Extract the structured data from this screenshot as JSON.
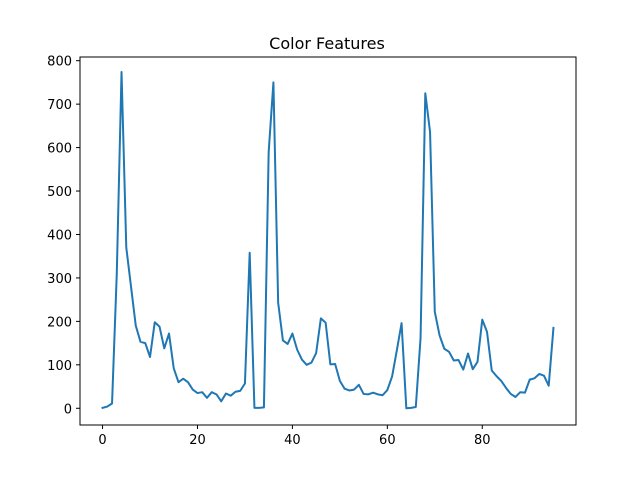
{
  "chart_data": {
    "type": "line",
    "title": "Color Features",
    "xlabel": "",
    "ylabel": "",
    "xlim": [
      -4.75,
      99.75
    ],
    "ylim": [
      -38.5,
      808.5
    ],
    "x_ticks": [
      0,
      20,
      40,
      60,
      80
    ],
    "y_ticks": [
      0,
      100,
      200,
      300,
      400,
      500,
      600,
      700,
      800
    ],
    "grid": false,
    "legend": "none",
    "line_color": "#1f77b4",
    "series": [
      {
        "x": [
          0,
          1,
          2,
          3,
          4,
          5,
          6,
          7,
          8,
          9,
          10,
          11,
          12,
          13,
          14,
          15,
          16,
          17,
          18,
          19,
          20,
          21,
          22,
          23,
          24,
          25,
          26,
          27,
          28,
          29,
          30,
          31,
          32,
          33,
          34,
          35,
          36,
          37,
          38,
          39,
          40,
          41,
          42,
          43,
          44,
          45,
          46,
          47,
          48,
          49,
          50,
          51,
          52,
          53,
          54,
          55,
          56,
          57,
          58,
          59,
          60,
          61,
          62,
          63,
          64,
          65,
          66,
          67,
          68,
          69,
          70,
          71,
          72,
          73,
          74,
          75,
          76,
          77,
          78,
          79,
          80,
          81,
          82,
          83,
          84,
          85,
          86,
          87,
          88,
          89,
          90,
          91,
          92,
          93,
          94,
          95
        ],
        "values": [
          1,
          4,
          11,
          310,
          774,
          370,
          280,
          190,
          153,
          150,
          118,
          198,
          188,
          138,
          172,
          92,
          60,
          68,
          60,
          43,
          35,
          37,
          24,
          37,
          32,
          16,
          34,
          29,
          38,
          40,
          57,
          358,
          1,
          1,
          2,
          590,
          750,
          243,
          156,
          148,
          172,
          135,
          112,
          100,
          105,
          127,
          207,
          197,
          101,
          102,
          63,
          45,
          41,
          43,
          54,
          33,
          32,
          36,
          32,
          30,
          42,
          73,
          133,
          196,
          0,
          1,
          3,
          162,
          725,
          636,
          222,
          168,
          137,
          130,
          110,
          111,
          89,
          126,
          90,
          107,
          204,
          176,
          87,
          74,
          63,
          47,
          33,
          26,
          37,
          36,
          66,
          69,
          79,
          75,
          52,
          185
        ]
      }
    ]
  }
}
